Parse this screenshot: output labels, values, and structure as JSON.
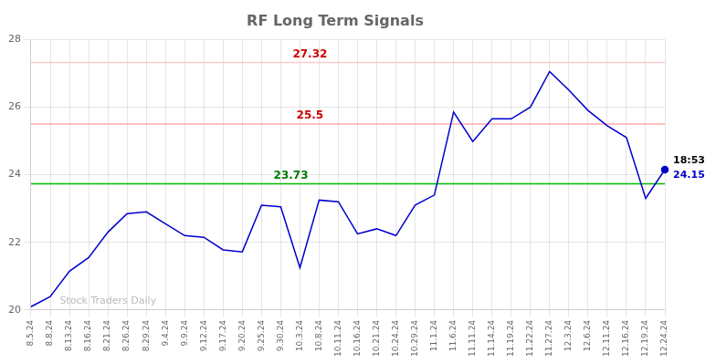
{
  "chart_data": {
    "type": "line",
    "title": "RF Long Term Signals",
    "categories": [
      "8.5.24",
      "8.8.24",
      "8.13.24",
      "8.16.24",
      "8.21.24",
      "8.26.24",
      "8.29.24",
      "9.4.24",
      "9.9.24",
      "9.12.24",
      "9.17.24",
      "9.20.24",
      "9.25.24",
      "9.30.24",
      "10.3.24",
      "10.8.24",
      "10.11.24",
      "10.16.24",
      "10.21.24",
      "10.24.24",
      "10.29.24",
      "11.1.24",
      "11.6.24",
      "11.11.24",
      "11.14.24",
      "11.19.24",
      "11.22.24",
      "11.27.24",
      "12.3.24",
      "12.6.24",
      "12.11.24",
      "12.16.24",
      "12.19.24",
      "12.24.24"
    ],
    "values": [
      20.1,
      20.4,
      21.15,
      21.55,
      22.3,
      22.85,
      22.9,
      22.55,
      22.2,
      22.15,
      21.78,
      21.72,
      23.1,
      23.05,
      21.25,
      23.25,
      23.2,
      22.25,
      22.4,
      22.2,
      23.1,
      23.4,
      25.85,
      24.98,
      25.65,
      25.65,
      26.0,
      27.05,
      26.5,
      25.9,
      25.45,
      25.1,
      23.3,
      24.15
    ],
    "color": "#0000cc",
    "ylim": [
      20,
      28
    ],
    "yticks": [
      20,
      22,
      24,
      26,
      28
    ],
    "grid": true,
    "hlines": [
      {
        "value": 27.32,
        "label": "27.32",
        "color": "#ffcccc",
        "label_color": "#cc0000"
      },
      {
        "value": 25.5,
        "label": "25.5",
        "color": "#ffaaaa",
        "label_color": "#cc0000"
      },
      {
        "value": 23.73,
        "label": "23.73",
        "color": "#00bb00",
        "label_color": "#007700"
      }
    ],
    "annotations": [
      {
        "text": "18:53"
      },
      {
        "text": "24.15",
        "color": "#0000cc"
      }
    ],
    "watermark": {
      "text": "Stock Traders Daily",
      "color": "#bbbbbb"
    }
  }
}
